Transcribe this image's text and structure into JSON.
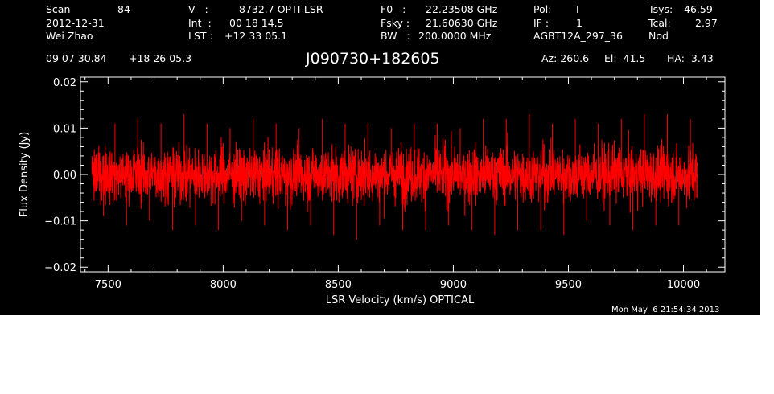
{
  "header": {
    "scan_label": "Scan",
    "scan_value": "84",
    "date": "2012-12-31",
    "observer": "Wei Zhao",
    "v_label": "V   :",
    "v_value": "8732.7 OPTI-LSR",
    "int_label": "Int  :",
    "int_value": "00 18 14.5",
    "lst_label": "LST :",
    "lst_value": "+12 33 05.1",
    "f0_label": "F0   :",
    "f0_value": "22.23508 GHz",
    "fsky_label": "Fsky :",
    "fsky_value": "21.60630 GHz",
    "bw_label": "BW   :",
    "bw_value": "200.0000 MHz",
    "pol_label": "Pol:",
    "pol_value": "I",
    "if_label": "IF :",
    "if_value": "1",
    "project": "AGBT12A_297_36",
    "tsys_label": "Tsys:",
    "tsys_value": "46.59",
    "tcal_label": "Tcal:",
    "tcal_value": "2.97",
    "mode": "Nod",
    "ra": "09 07 30.84",
    "dec": "+18 26 05.3",
    "source": "J090730+182605",
    "az": "Az: 260.6",
    "el": "El:  41.5",
    "ha": "HA:  3.43",
    "timestamp": "Mon May  6 21:54:34 2013"
  },
  "chart_data": {
    "type": "line",
    "xlabel": "LSR Velocity (km/s) OPTICAL",
    "ylabel": "Flux Density (Jy)",
    "xlim": [
      7380,
      10180
    ],
    "ylim": [
      -0.021,
      0.021
    ],
    "x_ticks": [
      7500,
      8000,
      8500,
      9000,
      9500,
      10000
    ],
    "x_tick_labels": [
      "7500",
      "8000",
      "8500",
      "9000",
      "9500",
      "10000"
    ],
    "y_ticks": [
      -0.02,
      -0.01,
      0.0,
      0.01,
      0.02
    ],
    "y_tick_labels": [
      "−0.02",
      "−0.01",
      "0.00",
      "0.01",
      "0.02"
    ],
    "grid": false,
    "series": [
      {
        "color": "#ff0000",
        "x_start": 7430,
        "x_end": 10060,
        "mean": 0.0,
        "peak_max": 0.0135,
        "peak_min": -0.0145,
        "x": [
          7430,
          7480,
          7530,
          7580,
          7630,
          7680,
          7730,
          7780,
          7830,
          7880,
          7930,
          7980,
          8030,
          8080,
          8130,
          8180,
          8230,
          8280,
          8330,
          8380,
          8430,
          8480,
          8530,
          8580,
          8630,
          8680,
          8730,
          8780,
          8830,
          8880,
          8930,
          8980,
          9030,
          9080,
          9130,
          9180,
          9230,
          9280,
          9330,
          9380,
          9430,
          9480,
          9530,
          9580,
          9630,
          9680,
          9730,
          9780,
          9830,
          9880,
          9930,
          9980,
          10030,
          10060
        ],
        "y": [
          0.004,
          -0.009,
          0.011,
          -0.011,
          0.012,
          -0.01,
          0.011,
          -0.012,
          0.013,
          -0.011,
          0.011,
          -0.012,
          0.01,
          -0.01,
          0.012,
          -0.011,
          0.011,
          -0.012,
          0.01,
          -0.011,
          0.012,
          -0.013,
          0.011,
          -0.014,
          0.011,
          -0.011,
          0.01,
          -0.012,
          0.011,
          -0.012,
          0.011,
          -0.011,
          0.01,
          -0.012,
          0.012,
          -0.013,
          0.012,
          -0.012,
          0.013,
          -0.012,
          0.011,
          -0.013,
          0.012,
          -0.01,
          0.011,
          -0.011,
          0.012,
          -0.012,
          0.013,
          -0.011,
          0.013,
          -0.011,
          0.012,
          -0.005
        ]
      }
    ]
  }
}
